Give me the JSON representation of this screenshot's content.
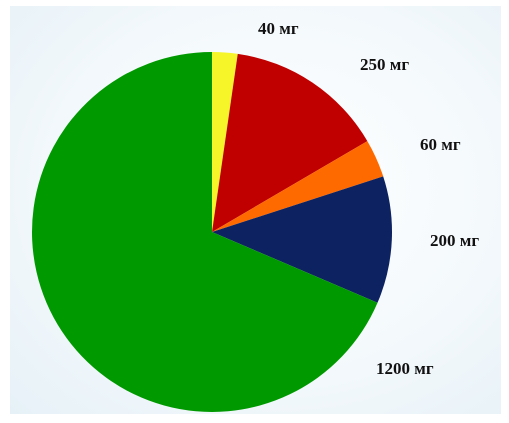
{
  "chart_data": {
    "type": "pie",
    "start": "top",
    "direction": "clockwise",
    "legend": "none",
    "slices": [
      {
        "label": "40 мг",
        "value": 40,
        "color": "#f5f52a"
      },
      {
        "label": "250 мг",
        "value": 250,
        "color": "#c00000"
      },
      {
        "label": "60 мг",
        "value": 60,
        "color": "#ff6a00"
      },
      {
        "label": "200 мг",
        "value": 200,
        "color": "#0d2361"
      },
      {
        "label": "1200 мг",
        "value": 1200,
        "color": "#009900"
      }
    ]
  }
}
